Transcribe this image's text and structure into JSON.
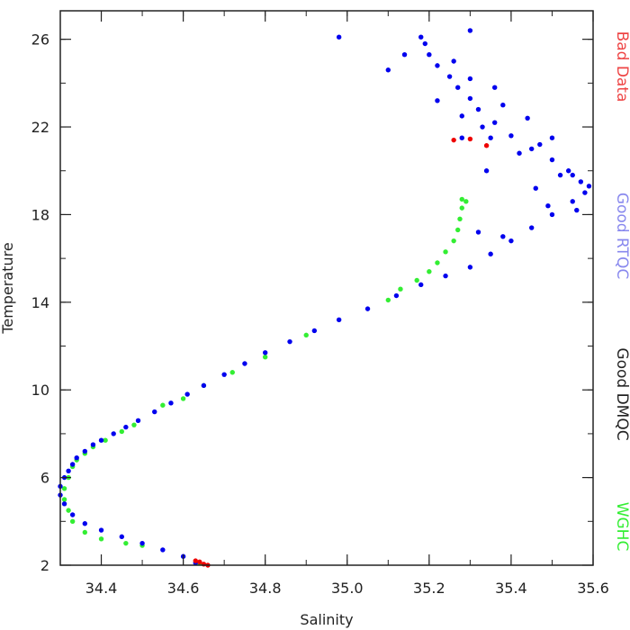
{
  "chart_data": {
    "type": "scatter",
    "xlabel": "Salinity",
    "ylabel": "Temperature",
    "xlim": [
      34.3,
      35.6
    ],
    "ylim": [
      2,
      27.3
    ],
    "x_ticks": [
      34.4,
      34.6,
      34.8,
      35.0,
      35.2,
      35.4,
      35.6
    ],
    "x_tick_labels": [
      "34.4",
      "34.6",
      "34.8",
      "35.0",
      "35.2",
      "35.4",
      "35.6"
    ],
    "y_ticks": [
      2,
      6,
      10,
      14,
      18,
      22,
      26
    ],
    "y_tick_labels": [
      "2",
      "6",
      "10",
      "14",
      "18",
      "22",
      "26"
    ],
    "grid": false,
    "legend_position": "right, vertical",
    "series": [
      {
        "name": "Good DMQC",
        "color": "#000000",
        "points": []
      },
      {
        "name": "WGHC",
        "color": "#33ee33",
        "points": [
          [
            34.64,
            2.1
          ],
          [
            34.5,
            2.9
          ],
          [
            34.46,
            3.0
          ],
          [
            34.4,
            3.2
          ],
          [
            34.36,
            3.5
          ],
          [
            34.33,
            4.0
          ],
          [
            34.32,
            4.5
          ],
          [
            34.31,
            5.0
          ],
          [
            34.31,
            5.5
          ],
          [
            34.32,
            6.0
          ],
          [
            34.33,
            6.5
          ],
          [
            34.34,
            6.8
          ],
          [
            34.36,
            7.1
          ],
          [
            34.38,
            7.4
          ],
          [
            34.41,
            7.7
          ],
          [
            34.45,
            8.1
          ],
          [
            34.48,
            8.4
          ],
          [
            34.55,
            9.3
          ],
          [
            34.6,
            9.6
          ],
          [
            34.65,
            10.2
          ],
          [
            34.72,
            10.8
          ],
          [
            34.8,
            11.5
          ],
          [
            34.9,
            12.5
          ],
          [
            35.1,
            14.1
          ],
          [
            35.13,
            14.6
          ],
          [
            35.17,
            15.0
          ],
          [
            35.2,
            15.4
          ],
          [
            35.22,
            15.8
          ],
          [
            35.24,
            16.3
          ],
          [
            35.26,
            16.8
          ],
          [
            35.27,
            17.3
          ],
          [
            35.275,
            17.8
          ],
          [
            35.28,
            18.3
          ],
          [
            35.28,
            18.7
          ],
          [
            35.29,
            18.6
          ]
        ]
      },
      {
        "name": "Good RTQC",
        "color": "#0000ee",
        "points": [
          [
            34.63,
            2.1
          ],
          [
            34.6,
            2.4
          ],
          [
            34.55,
            2.7
          ],
          [
            34.5,
            3.0
          ],
          [
            34.45,
            3.3
          ],
          [
            34.4,
            3.6
          ],
          [
            34.36,
            3.9
          ],
          [
            34.33,
            4.3
          ],
          [
            34.31,
            4.8
          ],
          [
            34.3,
            5.2
          ],
          [
            34.3,
            5.6
          ],
          [
            34.31,
            6.0
          ],
          [
            34.32,
            6.3
          ],
          [
            34.33,
            6.6
          ],
          [
            34.34,
            6.9
          ],
          [
            34.36,
            7.2
          ],
          [
            34.38,
            7.5
          ],
          [
            34.4,
            7.7
          ],
          [
            34.43,
            8.0
          ],
          [
            34.46,
            8.3
          ],
          [
            34.49,
            8.6
          ],
          [
            34.53,
            9.0
          ],
          [
            34.57,
            9.4
          ],
          [
            34.61,
            9.8
          ],
          [
            34.65,
            10.2
          ],
          [
            34.7,
            10.7
          ],
          [
            34.75,
            11.2
          ],
          [
            34.8,
            11.7
          ],
          [
            34.86,
            12.2
          ],
          [
            34.92,
            12.7
          ],
          [
            34.98,
            13.2
          ],
          [
            35.05,
            13.7
          ],
          [
            35.12,
            14.3
          ],
          [
            35.18,
            14.8
          ],
          [
            35.24,
            15.2
          ],
          [
            35.3,
            15.6
          ],
          [
            35.35,
            16.2
          ],
          [
            35.4,
            16.8
          ],
          [
            35.45,
            17.4
          ],
          [
            35.5,
            18.0
          ],
          [
            35.55,
            18.6
          ],
          [
            35.58,
            19.0
          ],
          [
            35.57,
            19.5
          ],
          [
            35.54,
            20.0
          ],
          [
            35.5,
            20.5
          ],
          [
            35.45,
            21.0
          ],
          [
            35.4,
            21.6
          ],
          [
            35.36,
            22.2
          ],
          [
            35.32,
            22.8
          ],
          [
            35.3,
            23.3
          ],
          [
            35.27,
            23.8
          ],
          [
            35.25,
            24.3
          ],
          [
            35.22,
            24.8
          ],
          [
            35.2,
            25.3
          ],
          [
            35.19,
            25.8
          ],
          [
            35.18,
            26.1
          ],
          [
            34.98,
            26.1
          ],
          [
            35.3,
            26.4
          ],
          [
            35.14,
            25.3
          ],
          [
            35.1,
            24.6
          ],
          [
            35.28,
            21.5
          ],
          [
            35.35,
            21.5
          ],
          [
            35.38,
            17.0
          ],
          [
            35.32,
            17.2
          ],
          [
            35.34,
            20.0
          ],
          [
            35.42,
            20.8
          ],
          [
            35.46,
            19.2
          ],
          [
            35.52,
            19.8
          ],
          [
            35.56,
            18.2
          ],
          [
            35.47,
            21.2
          ],
          [
            35.28,
            22.5
          ],
          [
            35.22,
            23.2
          ],
          [
            35.36,
            23.8
          ],
          [
            35.38,
            23.0
          ],
          [
            35.3,
            24.2
          ],
          [
            35.26,
            25.0
          ],
          [
            35.33,
            22.0
          ],
          [
            35.44,
            22.4
          ],
          [
            35.5,
            21.5
          ],
          [
            35.55,
            19.8
          ],
          [
            35.59,
            19.3
          ],
          [
            35.49,
            18.4
          ]
        ]
      },
      {
        "name": "Bad Data",
        "color": "#ee0000",
        "points": [
          [
            35.26,
            21.4
          ],
          [
            35.3,
            21.45
          ],
          [
            35.34,
            21.15
          ],
          [
            34.64,
            2.15
          ],
          [
            34.65,
            2.05
          ],
          [
            34.63,
            2.2
          ],
          [
            34.66,
            2.0
          ]
        ]
      }
    ]
  }
}
